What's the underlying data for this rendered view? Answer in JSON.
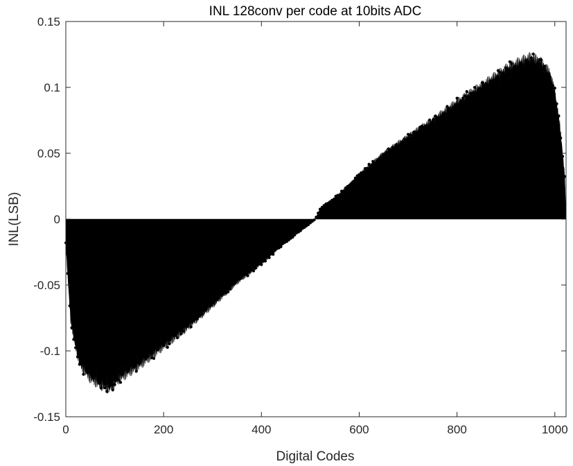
{
  "chart_data": {
    "type": "stem",
    "title": "INL 128conv per code at 10bits ADC",
    "xlabel": "Digital Codes",
    "ylabel": "INL(LSB)",
    "xlim": [
      0,
      1023
    ],
    "ylim": [
      -0.15,
      0.15
    ],
    "xticks": [
      "0",
      "200",
      "400",
      "600",
      "800",
      "1000"
    ],
    "yticks": [
      "-0.15",
      "-0.1",
      "-0.05",
      "0",
      "0.05",
      "0.1",
      "0.15"
    ],
    "grid": false,
    "legend": "none",
    "series_color": "#000000",
    "envelope": {
      "description": "INL per code: min near -0.135 around code 90, zero crossing near code 510, max near 0.13 around code 950",
      "x": [
        0,
        5,
        10,
        20,
        30,
        50,
        70,
        90,
        110,
        150,
        200,
        250,
        300,
        350,
        400,
        450,
        500,
        510,
        520,
        560,
        600,
        650,
        700,
        750,
        800,
        850,
        900,
        930,
        950,
        970,
        990,
        1000,
        1010,
        1020,
        1023
      ],
      "y": [
        -0.02,
        -0.05,
        -0.08,
        -0.1,
        -0.115,
        -0.125,
        -0.13,
        -0.133,
        -0.125,
        -0.115,
        -0.1,
        -0.085,
        -0.068,
        -0.05,
        -0.035,
        -0.018,
        -0.003,
        0.0,
        0.008,
        0.02,
        0.035,
        0.052,
        0.065,
        0.078,
        0.092,
        0.105,
        0.118,
        0.124,
        0.127,
        0.124,
        0.115,
        0.1,
        0.075,
        0.035,
        0.0
      ]
    }
  }
}
